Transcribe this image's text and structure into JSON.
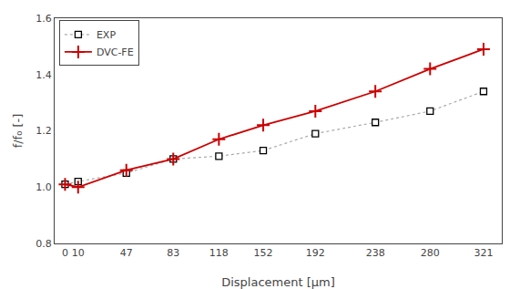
{
  "chart_data": {
    "type": "line",
    "x": [
      0,
      10,
      47,
      83,
      118,
      152,
      192,
      238,
      280,
      321
    ],
    "series": [
      {
        "name": "EXP",
        "color": "#aaaaaa",
        "marker": "square",
        "line_style": "dotted",
        "values": [
          1.01,
          1.02,
          1.05,
          1.1,
          1.11,
          1.13,
          1.19,
          1.23,
          1.27,
          1.34
        ]
      },
      {
        "name": "DVC-FE",
        "color": "#cc0000",
        "marker": "plus",
        "line_style": "solid",
        "values": [
          1.01,
          1.0,
          1.06,
          1.1,
          1.17,
          1.22,
          1.27,
          1.34,
          1.42,
          1.49
        ]
      }
    ],
    "x_label": "Displacement [μm]",
    "y_label": "f/f₀ [-]",
    "xlim": [
      -8,
      335
    ],
    "ylim": [
      0.8,
      1.6
    ],
    "xticks": [
      0,
      10,
      47,
      83,
      118,
      152,
      192,
      238,
      280,
      321
    ],
    "yticks": [
      0.8,
      {
        "value": 1.0,
        "label": "1.0"
      },
      1.2,
      1.4,
      1.6
    ],
    "grid": false,
    "legend": "upper left"
  }
}
